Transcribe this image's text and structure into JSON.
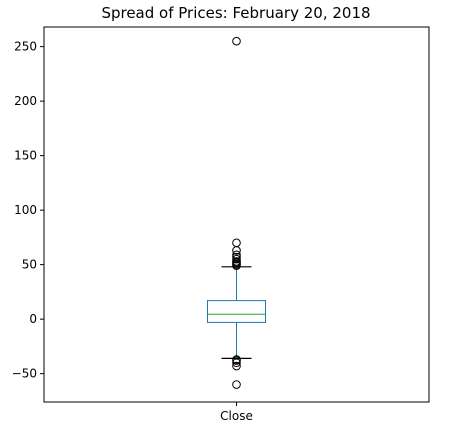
{
  "chart_data": {
    "type": "box",
    "title": "Spread of Prices: February 20, 2018",
    "xlabel": "",
    "ylabel": "",
    "ylim": [
      -76,
      268
    ],
    "yticks": [
      -50,
      0,
      50,
      100,
      150,
      200,
      250
    ],
    "categories": [
      "Close"
    ],
    "box": {
      "q1": -3,
      "median": 4.5,
      "q3": 17,
      "whisker_low": -36,
      "whisker_high": 48
    },
    "outliers": [
      -60,
      -43,
      -40,
      -38,
      -37,
      49,
      50,
      51,
      52,
      53,
      55,
      57,
      59,
      63,
      70,
      255
    ],
    "grid": false,
    "legend": "none",
    "colors": {
      "box": "#1f77b4",
      "median": "#2ca02c",
      "whisker": "#1f77b4",
      "cap": "#000000",
      "flier": "#000000"
    }
  }
}
